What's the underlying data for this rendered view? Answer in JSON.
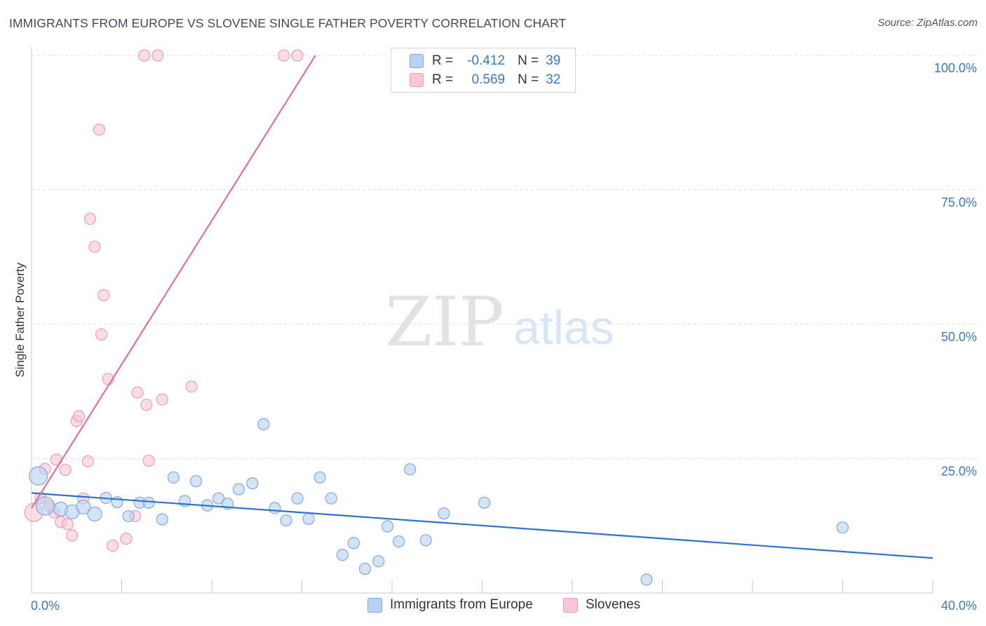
{
  "title": "IMMIGRANTS FROM EUROPE VS SLOVENE SINGLE FATHER POVERTY CORRELATION CHART",
  "source": "Source: ZipAtlas.com",
  "watermark": {
    "zip": "ZIP",
    "atlas": "atlas"
  },
  "colors": {
    "blue_fill": "#b7d2f2",
    "blue_stroke": "#7fa9df",
    "blue_line": "#2f6fcf",
    "pink_fill": "#f8c6d6",
    "pink_stroke": "#ec9db6",
    "pink_line": "#e0709a",
    "axis_text": "#3b78c4",
    "grid": "#dddddd"
  },
  "legend": {
    "r_label": "R =",
    "n_label": "N =",
    "series1": {
      "r": "-0.412",
      "n": "39"
    },
    "series2": {
      "r": "0.569",
      "n": "32"
    }
  },
  "chart_data": {
    "type": "scatter",
    "title": "IMMIGRANTS FROM EUROPE VS SLOVENE SINGLE FATHER POVERTY CORRELATION CHART",
    "xlabel": "",
    "ylabel": "Single Father Poverty",
    "xlim": [
      0,
      40
    ],
    "ylim": [
      0,
      100
    ],
    "x_tick_labels": [
      "0.0%",
      "40.0%"
    ],
    "y_ticks": [
      25,
      50,
      75,
      100
    ],
    "y_tick_labels": [
      "25.0%",
      "50.0%",
      "75.0%",
      "100.0%"
    ],
    "grid": true,
    "series": [
      {
        "name": "Immigrants from Europe",
        "color": "#7fa9df",
        "trend": {
          "x": [
            0,
            40
          ],
          "y": [
            18.6,
            6.5
          ]
        },
        "points": [
          {
            "x": 0.3,
            "y": 21.8,
            "size": "large"
          },
          {
            "x": 0.6,
            "y": 16.2,
            "size": "large"
          },
          {
            "x": 1.3,
            "y": 15.6,
            "size": "medium"
          },
          {
            "x": 1.8,
            "y": 15.1,
            "size": "medium"
          },
          {
            "x": 2.3,
            "y": 16.0,
            "size": "medium"
          },
          {
            "x": 2.8,
            "y": 14.7,
            "size": "medium"
          },
          {
            "x": 3.3,
            "y": 17.7
          },
          {
            "x": 3.8,
            "y": 16.9
          },
          {
            "x": 4.3,
            "y": 14.3
          },
          {
            "x": 4.8,
            "y": 16.8
          },
          {
            "x": 5.2,
            "y": 16.8
          },
          {
            "x": 5.8,
            "y": 13.7
          },
          {
            "x": 6.3,
            "y": 21.5
          },
          {
            "x": 6.8,
            "y": 17.1
          },
          {
            "x": 7.3,
            "y": 20.8
          },
          {
            "x": 7.8,
            "y": 16.3
          },
          {
            "x": 8.3,
            "y": 17.6
          },
          {
            "x": 8.7,
            "y": 16.6
          },
          {
            "x": 9.2,
            "y": 19.3
          },
          {
            "x": 9.8,
            "y": 20.4
          },
          {
            "x": 10.3,
            "y": 31.4
          },
          {
            "x": 10.8,
            "y": 15.8
          },
          {
            "x": 11.3,
            "y": 13.5
          },
          {
            "x": 11.8,
            "y": 17.6
          },
          {
            "x": 12.3,
            "y": 13.8
          },
          {
            "x": 12.8,
            "y": 21.5
          },
          {
            "x": 13.3,
            "y": 17.6
          },
          {
            "x": 13.8,
            "y": 7.1
          },
          {
            "x": 14.3,
            "y": 9.3
          },
          {
            "x": 14.8,
            "y": 4.5
          },
          {
            "x": 15.4,
            "y": 5.9
          },
          {
            "x": 15.8,
            "y": 12.4
          },
          {
            "x": 16.3,
            "y": 9.6
          },
          {
            "x": 16.8,
            "y": 23.0
          },
          {
            "x": 17.5,
            "y": 9.8
          },
          {
            "x": 18.3,
            "y": 14.8
          },
          {
            "x": 20.1,
            "y": 16.8
          },
          {
            "x": 27.3,
            "y": 2.5
          },
          {
            "x": 36.0,
            "y": 12.2
          }
        ]
      },
      {
        "name": "Slovenes",
        "color": "#ec9db6",
        "trend": {
          "x": [
            0,
            12.6
          ],
          "y": [
            15.8,
            100
          ]
        },
        "points": [
          {
            "x": 0.1,
            "y": 15.0,
            "size": "large"
          },
          {
            "x": 0.4,
            "y": 17.7
          },
          {
            "x": 0.6,
            "y": 23.1
          },
          {
            "x": 0.8,
            "y": 16.2
          },
          {
            "x": 1.0,
            "y": 15.0
          },
          {
            "x": 1.1,
            "y": 24.8
          },
          {
            "x": 1.3,
            "y": 13.2
          },
          {
            "x": 1.5,
            "y": 22.9
          },
          {
            "x": 1.6,
            "y": 12.8
          },
          {
            "x": 1.8,
            "y": 10.7
          },
          {
            "x": 2.0,
            "y": 32.0
          },
          {
            "x": 2.1,
            "y": 32.9
          },
          {
            "x": 2.3,
            "y": 17.6
          },
          {
            "x": 2.5,
            "y": 24.5
          },
          {
            "x": 2.6,
            "y": 69.6
          },
          {
            "x": 2.8,
            "y": 64.4
          },
          {
            "x": 3.0,
            "y": 86.2
          },
          {
            "x": 3.1,
            "y": 48.1
          },
          {
            "x": 3.2,
            "y": 55.4
          },
          {
            "x": 3.4,
            "y": 39.8
          },
          {
            "x": 3.6,
            "y": 8.8
          },
          {
            "x": 4.2,
            "y": 10.1
          },
          {
            "x": 4.6,
            "y": 14.3
          },
          {
            "x": 4.7,
            "y": 37.3
          },
          {
            "x": 5.0,
            "y": 100.0
          },
          {
            "x": 5.1,
            "y": 35.0
          },
          {
            "x": 5.2,
            "y": 24.6
          },
          {
            "x": 5.6,
            "y": 100.0
          },
          {
            "x": 5.8,
            "y": 36.0
          },
          {
            "x": 7.1,
            "y": 38.4
          },
          {
            "x": 11.2,
            "y": 100.0
          },
          {
            "x": 11.8,
            "y": 100.0
          }
        ]
      }
    ]
  }
}
